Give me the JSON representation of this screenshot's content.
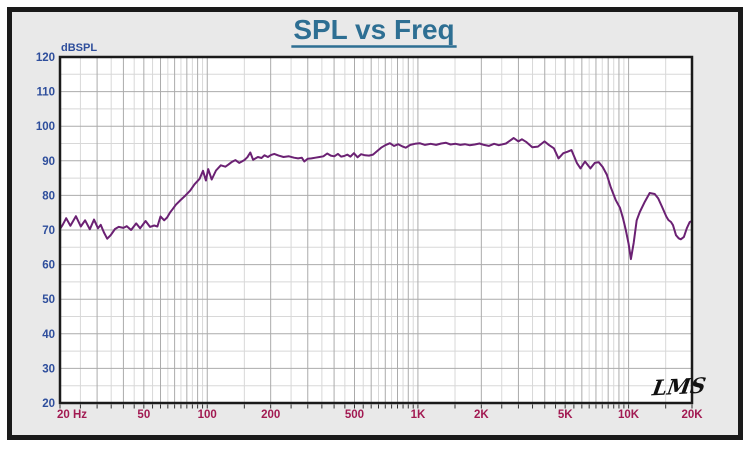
{
  "title": "SPL vs Freq",
  "logo": "LMS",
  "colors": {
    "title": "#2E6F93",
    "curve": "#6B2173",
    "y_label": "#2E4E9C",
    "x_label": "#A21A52",
    "grid_major": "#ABABAB",
    "grid_minor": "#D8D8D8",
    "panel_bg": "#E9E9E9",
    "plot_bg": "#FFFFFF",
    "border": "#1A1A1A",
    "logo": "#111111"
  },
  "chart_data": {
    "type": "line",
    "title": "SPL vs Freq",
    "ylabel": "dBSPL",
    "xlabel": "Hz",
    "legend": "none",
    "grid": "on",
    "x_axis": {
      "scale": "log",
      "min": 20,
      "max": 20000,
      "major_gridlines": [
        20,
        30,
        40,
        50,
        60,
        70,
        80,
        90,
        100,
        200,
        300,
        400,
        500,
        600,
        700,
        800,
        900,
        1000,
        2000,
        3000,
        4000,
        5000,
        6000,
        7000,
        8000,
        9000,
        10000,
        20000
      ],
      "minor_gridlines": [
        25,
        35,
        45,
        55,
        65,
        75,
        85,
        95,
        150,
        250,
        350,
        450,
        550,
        650,
        750,
        850,
        950,
        1500,
        2500,
        3500,
        4500,
        5500,
        6500,
        7500,
        8500,
        9500,
        15000
      ],
      "tick_labels": [
        {
          "f": 20,
          "label": "20 Hz",
          "anchor": "start"
        },
        {
          "f": 50,
          "label": "50",
          "anchor": "middle"
        },
        {
          "f": 100,
          "label": "100",
          "anchor": "middle"
        },
        {
          "f": 200,
          "label": "200",
          "anchor": "middle"
        },
        {
          "f": 500,
          "label": "500",
          "anchor": "middle"
        },
        {
          "f": 1000,
          "label": "1K",
          "anchor": "middle"
        },
        {
          "f": 2000,
          "label": "2K",
          "anchor": "middle"
        },
        {
          "f": 5000,
          "label": "5K",
          "anchor": "middle"
        },
        {
          "f": 10000,
          "label": "10K",
          "anchor": "middle"
        },
        {
          "f": 20000,
          "label": "20K",
          "anchor": "middle"
        }
      ]
    },
    "y_axis": {
      "min": 20,
      "max": 120,
      "unit": "dBSPL",
      "major_gridlines": [
        120,
        110,
        100,
        90,
        80,
        70,
        60,
        50,
        40,
        30,
        20
      ],
      "minor_gridlines": [
        115,
        105,
        95,
        85,
        75,
        65,
        55,
        45,
        35,
        25
      ],
      "tick_labels": [
        120,
        110,
        100,
        90,
        80,
        70,
        60,
        50,
        40,
        30,
        20
      ]
    },
    "series": [
      {
        "name": "SPL",
        "points": [
          [
            20,
            70.3
          ],
          [
            20.6,
            71.5
          ],
          [
            21.4,
            73.4
          ],
          [
            22.4,
            71.2
          ],
          [
            23.8,
            74.0
          ],
          [
            25.1,
            71.0
          ],
          [
            26.3,
            72.8
          ],
          [
            27.7,
            70.2
          ],
          [
            29,
            73.0
          ],
          [
            30.3,
            70.5
          ],
          [
            31.2,
            71.5
          ],
          [
            32.3,
            69.3
          ],
          [
            33.5,
            67.5
          ],
          [
            34.8,
            68.5
          ],
          [
            36.5,
            70.3
          ],
          [
            38,
            70.9
          ],
          [
            40,
            70.6
          ],
          [
            41.5,
            71.1
          ],
          [
            43.5,
            70.0
          ],
          [
            46,
            71.9
          ],
          [
            48,
            70.5
          ],
          [
            51,
            72.6
          ],
          [
            53.5,
            70.9
          ],
          [
            56,
            71.3
          ],
          [
            58,
            71.0
          ],
          [
            60,
            73.9
          ],
          [
            62.5,
            72.8
          ],
          [
            64.5,
            73.6
          ],
          [
            66.5,
            75.0
          ],
          [
            68.5,
            76.0
          ],
          [
            71,
            77.3
          ],
          [
            74,
            78.4
          ],
          [
            78,
            79.7
          ],
          [
            83,
            81.4
          ],
          [
            87,
            83.2
          ],
          [
            92,
            84.8
          ],
          [
            95.5,
            87.1
          ],
          [
            98.5,
            84.3
          ],
          [
            101,
            87.6
          ],
          [
            105,
            84.6
          ],
          [
            110,
            87.2
          ],
          [
            116,
            88.7
          ],
          [
            122,
            88.3
          ],
          [
            126,
            88.9
          ],
          [
            131,
            89.7
          ],
          [
            136,
            90.2
          ],
          [
            142,
            89.4
          ],
          [
            150,
            90.2
          ],
          [
            155,
            91.0
          ],
          [
            160,
            92.4
          ],
          [
            165,
            90.3
          ],
          [
            174,
            91.1
          ],
          [
            181,
            90.8
          ],
          [
            187,
            91.6
          ],
          [
            194,
            91.1
          ],
          [
            201,
            91.7
          ],
          [
            208,
            92.0
          ],
          [
            218,
            91.5
          ],
          [
            230,
            91.1
          ],
          [
            244,
            91.3
          ],
          [
            258,
            90.9
          ],
          [
            270,
            90.7
          ],
          [
            281,
            90.9
          ],
          [
            289,
            89.8
          ],
          [
            300,
            90.6
          ],
          [
            312,
            90.7
          ],
          [
            326,
            90.9
          ],
          [
            341,
            91.1
          ],
          [
            356,
            91.3
          ],
          [
            371,
            92.1
          ],
          [
            386,
            91.5
          ],
          [
            401,
            91.3
          ],
          [
            417,
            92.0
          ],
          [
            432,
            91.2
          ],
          [
            447,
            91.4
          ],
          [
            462,
            91.8
          ],
          [
            478,
            91.2
          ],
          [
            497,
            92.2
          ],
          [
            517,
            91.0
          ],
          [
            537,
            91.9
          ],
          [
            561,
            91.6
          ],
          [
            586,
            91.5
          ],
          [
            612,
            91.8
          ],
          [
            640,
            92.8
          ],
          [
            669,
            93.8
          ],
          [
            700,
            94.5
          ],
          [
            736,
            95.1
          ],
          [
            770,
            94.3
          ],
          [
            806,
            94.8
          ],
          [
            841,
            94.2
          ],
          [
            876,
            93.8
          ],
          [
            920,
            94.6
          ],
          [
            968,
            94.9
          ],
          [
            1020,
            95.1
          ],
          [
            1080,
            94.6
          ],
          [
            1150,
            94.9
          ],
          [
            1220,
            94.6
          ],
          [
            1290,
            95.0
          ],
          [
            1360,
            95.2
          ],
          [
            1430,
            94.7
          ],
          [
            1510,
            94.9
          ],
          [
            1590,
            94.6
          ],
          [
            1670,
            94.8
          ],
          [
            1760,
            94.5
          ],
          [
            1860,
            94.7
          ],
          [
            1960,
            95.0
          ],
          [
            2060,
            94.6
          ],
          [
            2170,
            94.3
          ],
          [
            2300,
            94.9
          ],
          [
            2420,
            94.5
          ],
          [
            2620,
            95.0
          ],
          [
            2850,
            96.6
          ],
          [
            3000,
            95.6
          ],
          [
            3120,
            96.2
          ],
          [
            3260,
            95.5
          ],
          [
            3490,
            93.9
          ],
          [
            3710,
            94.1
          ],
          [
            3990,
            95.6
          ],
          [
            4200,
            94.5
          ],
          [
            4420,
            93.6
          ],
          [
            4650,
            90.7
          ],
          [
            4900,
            92.2
          ],
          [
            5120,
            92.6
          ],
          [
            5360,
            93.1
          ],
          [
            5690,
            89.3
          ],
          [
            5910,
            87.8
          ],
          [
            6210,
            89.8
          ],
          [
            6590,
            87.8
          ],
          [
            6910,
            89.4
          ],
          [
            7210,
            89.6
          ],
          [
            7540,
            88.2
          ],
          [
            7880,
            86.0
          ],
          [
            8230,
            82.3
          ],
          [
            8700,
            78.6
          ],
          [
            9100,
            76.4
          ],
          [
            9420,
            73.3
          ],
          [
            9700,
            70.0
          ],
          [
            10000,
            66.0
          ],
          [
            10260,
            61.6
          ],
          [
            10570,
            66.3
          ],
          [
            10930,
            72.8
          ],
          [
            11300,
            75.2
          ],
          [
            11950,
            78.2
          ],
          [
            12590,
            80.7
          ],
          [
            13300,
            80.4
          ],
          [
            13800,
            79.2
          ],
          [
            14400,
            76.8
          ],
          [
            15100,
            73.9
          ],
          [
            15450,
            72.9
          ],
          [
            15900,
            72.3
          ],
          [
            16250,
            71.4
          ],
          [
            16800,
            68.5
          ],
          [
            17300,
            67.6
          ],
          [
            17700,
            67.3
          ],
          [
            18300,
            68.0
          ],
          [
            18900,
            70.5
          ],
          [
            19500,
            72.3
          ],
          [
            20000,
            72.6
          ]
        ]
      }
    ]
  }
}
